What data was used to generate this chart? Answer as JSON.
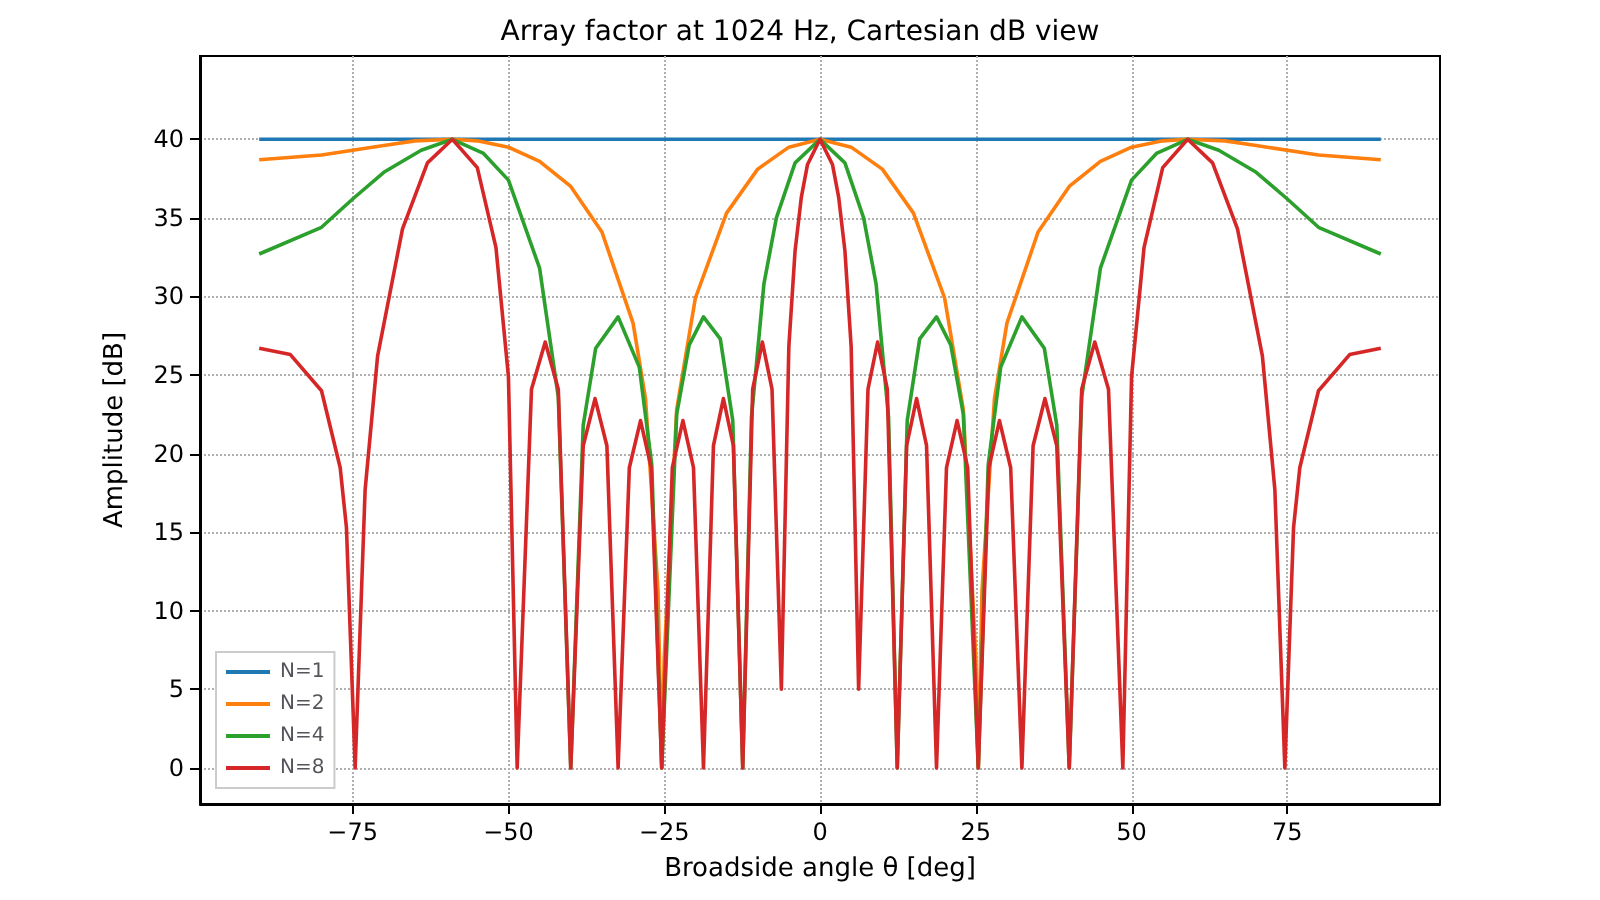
{
  "chart_data": {
    "type": "line",
    "title": "Array factor at 1024 Hz, Cartesian dB view",
    "xlabel": "Broadside angle θ [deg]",
    "ylabel": "Amplitude [dB]",
    "xlim": [
      -99.5,
      99.5
    ],
    "xticks": [
      -75,
      -50,
      -25,
      0,
      25,
      50,
      75
    ],
    "ylim": [
      -2.3,
      45.3
    ],
    "yticks": [
      0,
      5,
      10,
      15,
      20,
      25,
      30,
      35,
      40
    ],
    "grid": true,
    "legend": "bottom left",
    "marker": "none",
    "line_style": "solid",
    "series": [
      {
        "name": "N=1",
        "color": "#1f77b4",
        "x": [
          -90,
          90
        ],
        "values": [
          40,
          40
        ]
      },
      {
        "name": "N=2",
        "color": "#ff7f0e",
        "x": [
          -90,
          -80,
          -70,
          -65,
          -59,
          -55,
          -50,
          -45,
          -40,
          -35,
          -30,
          -28,
          -26,
          -25.4,
          -25,
          -23,
          -20,
          -15,
          -10,
          -5,
          0,
          5,
          10,
          15,
          20,
          23,
          25,
          25.4,
          26,
          28,
          30,
          35,
          40,
          45,
          50,
          55,
          59,
          65,
          70,
          80,
          90
        ],
        "values": [
          38.7,
          39.0,
          39.6,
          39.9,
          40,
          39.9,
          39.5,
          38.6,
          37,
          34.1,
          28.3,
          23.5,
          11.3,
          0,
          7,
          22.8,
          29.9,
          35.3,
          38.1,
          39.5,
          40,
          39.5,
          38.1,
          35.3,
          29.9,
          22.8,
          7,
          0,
          11.3,
          23.5,
          28.3,
          34.1,
          37,
          38.6,
          39.5,
          39.9,
          40,
          39.9,
          39.6,
          39.0,
          38.7
        ]
      },
      {
        "name": "N=4",
        "color": "#2ca02c",
        "x": [
          -90,
          -80,
          -75,
          -70,
          -64,
          -59,
          -54,
          -50,
          -45,
          -42,
          -40,
          -38,
          -36,
          -32.4,
          -29,
          -27,
          -25.4,
          -23,
          -21,
          -18.7,
          -16,
          -14,
          -12.4,
          -11,
          -9,
          -7,
          -4,
          0,
          4,
          7,
          9,
          11,
          12.4,
          14,
          16,
          18.7,
          21,
          23,
          25.4,
          27,
          29,
          32.4,
          36,
          38,
          40,
          42,
          45,
          50,
          54,
          59,
          64,
          70,
          75,
          80,
          90
        ],
        "values": [
          32.7,
          34.4,
          36.2,
          37.9,
          39.3,
          40,
          39.1,
          37.4,
          31.8,
          23.6,
          0,
          21.8,
          26.7,
          28.7,
          25.5,
          19.3,
          0,
          22.5,
          26.9,
          28.7,
          27.3,
          22.1,
          0,
          22.3,
          30.8,
          35.0,
          38.5,
          40,
          38.5,
          35.0,
          30.8,
          22.3,
          0,
          22.1,
          27.3,
          28.7,
          26.9,
          22.5,
          0,
          19.3,
          25.5,
          28.7,
          26.7,
          21.8,
          0,
          23.6,
          31.8,
          37.4,
          39.1,
          40,
          39.3,
          37.9,
          36.2,
          34.4,
          32.7
        ]
      },
      {
        "name": "N=8",
        "color": "#d62728",
        "x": [
          -90,
          -85,
          -80,
          -77,
          -76,
          -74.6,
          -73,
          -71,
          -67,
          -63,
          -59,
          -55,
          -52,
          -50,
          -48.6,
          -46.3,
          -44.1,
          -42,
          -40,
          -38,
          -36.1,
          -34.2,
          -32.4,
          -30.6,
          -28.8,
          -27.1,
          -25.4,
          -23.7,
          -22,
          -20.3,
          -18.7,
          -17.1,
          -15.5,
          -13.9,
          -12.4,
          -10.8,
          -9.25,
          -7.7,
          -6.2,
          -5,
          -4,
          -3,
          -2,
          0,
          2,
          3,
          4,
          5,
          6.2,
          7.7,
          9.25,
          10.8,
          12.4,
          13.9,
          15.5,
          17.1,
          18.7,
          20.3,
          22,
          23.7,
          25.4,
          27.1,
          28.8,
          30.6,
          32.4,
          34.2,
          36.1,
          38,
          40,
          42,
          44.1,
          46.3,
          48.6,
          50,
          52,
          55,
          59,
          63,
          67,
          71,
          73,
          74.6,
          76,
          77,
          80,
          85,
          90
        ],
        "values": [
          26.7,
          26.3,
          24,
          19.1,
          15.3,
          0,
          17.7,
          26.2,
          34.3,
          38.5,
          40,
          38.2,
          33.1,
          24.9,
          0,
          24.1,
          27.1,
          24.1,
          0,
          20.5,
          23.5,
          20.5,
          0,
          19.1,
          22.1,
          19.1,
          0,
          19.1,
          22.1,
          19.1,
          0,
          20.5,
          23.5,
          20.5,
          0,
          24.1,
          27.1,
          24.1,
          5,
          26.8,
          32.9,
          36.3,
          38.4,
          40,
          38.4,
          36.3,
          32.9,
          26.8,
          5,
          24.1,
          27.1,
          24.1,
          0,
          20.5,
          23.5,
          20.5,
          0,
          19.1,
          22.1,
          19.1,
          0,
          19.1,
          22.1,
          19.1,
          0,
          20.5,
          23.5,
          20.5,
          0,
          24.1,
          27.1,
          24.1,
          0,
          24.9,
          33.1,
          38.2,
          40,
          38.5,
          34.3,
          26.2,
          17.7,
          0,
          15.3,
          19.1,
          24,
          26.3,
          26.7
        ]
      }
    ]
  }
}
